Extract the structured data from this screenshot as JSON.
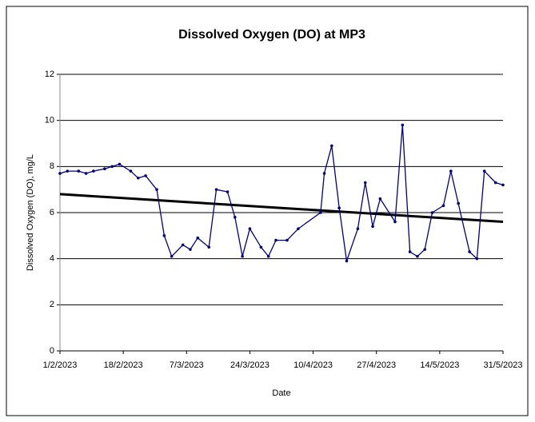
{
  "chart_data": {
    "type": "line",
    "title": "Dissolved Oxygen (DO)  at MP3",
    "x_label": "Date",
    "y_label": "Dissolved Oxygen (DO), mg/L",
    "x": [
      "2023-02-01",
      "2023-02-03",
      "2023-02-06",
      "2023-02-08",
      "2023-02-10",
      "2023-02-13",
      "2023-02-15",
      "2023-02-17",
      "2023-02-20",
      "2023-02-22",
      "2023-02-24",
      "2023-02-27",
      "2023-03-01",
      "2023-03-03",
      "2023-03-06",
      "2023-03-08",
      "2023-03-10",
      "2023-03-13",
      "2023-03-15",
      "2023-03-18",
      "2023-03-20",
      "2023-03-22",
      "2023-03-24",
      "2023-03-27",
      "2023-03-29",
      "2023-03-31",
      "2023-04-03",
      "2023-04-06",
      "2023-04-12",
      "2023-04-13",
      "2023-04-15",
      "2023-04-17",
      "2023-04-19",
      "2023-04-22",
      "2023-04-24",
      "2023-04-26",
      "2023-04-28",
      "2023-05-02",
      "2023-05-04",
      "2023-05-06",
      "2023-05-08",
      "2023-05-10",
      "2023-05-12",
      "2023-05-15",
      "2023-05-17",
      "2023-05-19",
      "2023-05-22",
      "2023-05-24",
      "2023-05-26",
      "2023-05-29",
      "2023-05-31"
    ],
    "series": [
      {
        "color": "#000080",
        "values": [
          7.7,
          7.8,
          7.8,
          7.7,
          7.8,
          7.9,
          8.0,
          8.1,
          7.8,
          7.5,
          7.6,
          7.0,
          5.0,
          4.1,
          4.6,
          4.4,
          4.9,
          4.5,
          7.0,
          6.9,
          5.8,
          4.1,
          5.3,
          4.5,
          4.1,
          4.8,
          4.8,
          5.3,
          6.0,
          7.7,
          8.9,
          6.2,
          3.9,
          5.3,
          7.3,
          5.4,
          6.6,
          5.6,
          9.8,
          4.3,
          4.1,
          4.4,
          6.0,
          6.3,
          7.8,
          6.4,
          4.3,
          4.0,
          7.8,
          7.3,
          7.2
        ]
      }
    ],
    "trend": {
      "color": "#000000",
      "x": [
        "2023-02-01",
        "2023-05-31"
      ],
      "values": [
        6.8,
        5.6
      ]
    },
    "xlim": [
      "2023-02-01",
      "2023-05-31"
    ],
    "xticks": [
      {
        "value": "2023-02-01",
        "label": "1/2/2023"
      },
      {
        "value": "2023-02-18",
        "label": "18/2/2023"
      },
      {
        "value": "2023-03-07",
        "label": "7/3/2023"
      },
      {
        "value": "2023-03-24",
        "label": "24/3/2023"
      },
      {
        "value": "2023-04-10",
        "label": "10/4/2023"
      },
      {
        "value": "2023-04-27",
        "label": "27/4/2023"
      },
      {
        "value": "2023-05-14",
        "label": "14/5/2023"
      },
      {
        "value": "2023-05-31",
        "label": "31/5/2023"
      }
    ],
    "ylim": [
      0,
      12
    ],
    "yticks": [
      0,
      2,
      4,
      6,
      8,
      10,
      12
    ],
    "grid": true
  }
}
